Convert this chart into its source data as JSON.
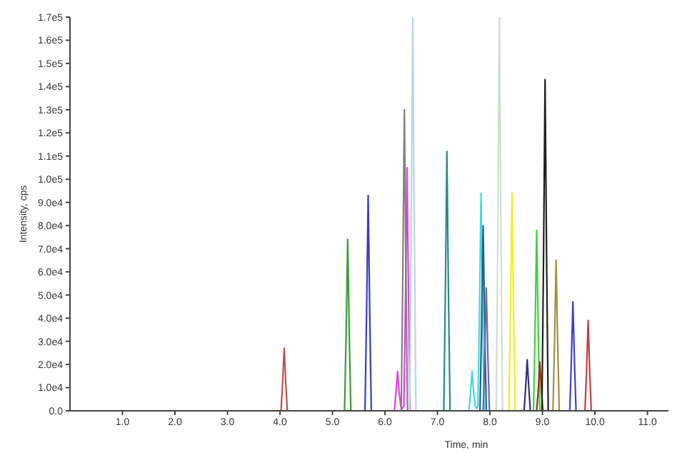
{
  "chart_data": {
    "type": "line",
    "xlabel": "Time, min",
    "ylabel": "Intensity, cps",
    "xlim": [
      0,
      11.4
    ],
    "ylim": [
      0,
      170000
    ],
    "xticks": [
      {
        "value": 1,
        "label": "1.0"
      },
      {
        "value": 2,
        "label": "2.0"
      },
      {
        "value": 3,
        "label": "3.0"
      },
      {
        "value": 4,
        "label": "4.0"
      },
      {
        "value": 5,
        "label": "5.0"
      },
      {
        "value": 6,
        "label": "6.0"
      },
      {
        "value": 7,
        "label": "7.0"
      },
      {
        "value": 8,
        "label": "8.0"
      },
      {
        "value": 9,
        "label": "9.0"
      },
      {
        "value": 10,
        "label": "10.0"
      },
      {
        "value": 11,
        "label": "11.0"
      }
    ],
    "yticks": [
      {
        "value": 0,
        "label": "0.0"
      },
      {
        "value": 10000,
        "label": "1.0e4"
      },
      {
        "value": 20000,
        "label": "2.0e4"
      },
      {
        "value": 30000,
        "label": "3.0e4"
      },
      {
        "value": 40000,
        "label": "4.0e4"
      },
      {
        "value": 50000,
        "label": "5.0e4"
      },
      {
        "value": 60000,
        "label": "6.0e4"
      },
      {
        "value": 70000,
        "label": "7.0e4"
      },
      {
        "value": 80000,
        "label": "8.0e4"
      },
      {
        "value": 90000,
        "label": "9.0e4"
      },
      {
        "value": 100000,
        "label": "1.0e5"
      },
      {
        "value": 110000,
        "label": "1.1e5"
      },
      {
        "value": 120000,
        "label": "1.2e5"
      },
      {
        "value": 130000,
        "label": "1.3e5"
      },
      {
        "value": 140000,
        "label": "1.4e5"
      },
      {
        "value": 150000,
        "label": "1.5e5"
      },
      {
        "value": 160000,
        "label": "1.6e5"
      },
      {
        "value": 170000,
        "label": "1.7e5"
      }
    ],
    "grid": false,
    "legend": false,
    "marker": "none",
    "line_style": "solid",
    "series": [
      {
        "color": "#c0504d",
        "x": [
          4.02,
          4.05,
          4.08,
          4.11,
          4.14
        ],
        "values": [
          0,
          12000,
          27000,
          12000,
          0
        ]
      },
      {
        "color": "#3a9a3a",
        "x": [
          5.23,
          5.26,
          5.29,
          5.32,
          5.35
        ],
        "values": [
          0,
          33000,
          74000,
          33000,
          0
        ]
      },
      {
        "color": "#3b3bbf",
        "x": [
          5.62,
          5.65,
          5.68,
          5.71,
          5.74
        ],
        "values": [
          0,
          42000,
          93000,
          42000,
          0
        ]
      },
      {
        "color": "#e040e0",
        "x": [
          6.18,
          6.21,
          6.24,
          6.27,
          6.3,
          6.33,
          6.36,
          6.39,
          6.42,
          6.45,
          6.48
        ],
        "values": [
          0,
          8000,
          17000,
          8000,
          2000,
          1000,
          2000,
          47000,
          105000,
          47000,
          0
        ]
      },
      {
        "color": "#808080",
        "x": [
          6.31,
          6.34,
          6.37,
          6.4,
          6.43
        ],
        "values": [
          0,
          58000,
          130000,
          58000,
          0
        ]
      },
      {
        "color": "#b8d4ea",
        "x": [
          6.47,
          6.5,
          6.53,
          6.56,
          6.59
        ],
        "values": [
          0,
          76000,
          170000,
          76000,
          0
        ]
      },
      {
        "color": "#2a8a80",
        "x": [
          7.12,
          7.15,
          7.18,
          7.21,
          7.24
        ],
        "values": [
          0,
          50000,
          112000,
          50000,
          0
        ]
      },
      {
        "color": "#40d8e8",
        "x": [
          7.6,
          7.63,
          7.66,
          7.69,
          7.72,
          7.75,
          7.77,
          7.8,
          7.83,
          7.86,
          7.89
        ],
        "values": [
          0,
          8000,
          17000,
          8000,
          2000,
          1000,
          2000,
          42000,
          94000,
          42000,
          0
        ]
      },
      {
        "color": "#1f5f8a",
        "x": [
          7.81,
          7.84,
          7.87,
          7.9,
          7.93
        ],
        "values": [
          0,
          36000,
          80000,
          36000,
          0
        ]
      },
      {
        "color": "#6a6aa8",
        "x": [
          7.87,
          7.9,
          7.93,
          7.96,
          7.99
        ],
        "values": [
          0,
          24000,
          53000,
          24000,
          0
        ]
      },
      {
        "color": "#d0dcd0",
        "x": [
          8.12,
          8.15,
          8.18,
          8.21,
          8.24
        ],
        "values": [
          0,
          76000,
          170000,
          76000,
          0
        ]
      },
      {
        "color": "#f0f020",
        "x": [
          8.36,
          8.39,
          8.42,
          8.45,
          8.48
        ],
        "values": [
          0,
          42000,
          94000,
          42000,
          0
        ]
      },
      {
        "color": "#303078",
        "x": [
          8.65,
          8.68,
          8.71,
          8.74,
          8.77
        ],
        "values": [
          0,
          10000,
          22000,
          10000,
          0
        ]
      },
      {
        "color": "#40d040",
        "x": [
          8.83,
          8.86,
          8.89,
          8.92,
          8.95
        ],
        "values": [
          0,
          35000,
          78000,
          35000,
          0
        ]
      },
      {
        "color": "#8a3a10",
        "x": [
          8.89,
          8.92,
          8.95,
          8.98,
          9.01
        ],
        "values": [
          0,
          9000,
          21000,
          9000,
          0
        ]
      },
      {
        "color": "#202020",
        "x": [
          8.99,
          9.02,
          9.05,
          9.08,
          9.11
        ],
        "values": [
          0,
          64000,
          143000,
          64000,
          0
        ]
      },
      {
        "color": "#a09040",
        "x": [
          9.2,
          9.23,
          9.26,
          9.29,
          9.32
        ],
        "values": [
          0,
          29000,
          65000,
          29000,
          0
        ]
      },
      {
        "color": "#4040d0",
        "x": [
          9.52,
          9.55,
          9.58,
          9.61,
          9.64
        ],
        "values": [
          0,
          21000,
          47000,
          21000,
          0
        ]
      },
      {
        "color": "#c04040",
        "x": [
          9.81,
          9.84,
          9.87,
          9.9,
          9.93
        ],
        "values": [
          0,
          17000,
          39000,
          17000,
          0
        ]
      }
    ]
  }
}
